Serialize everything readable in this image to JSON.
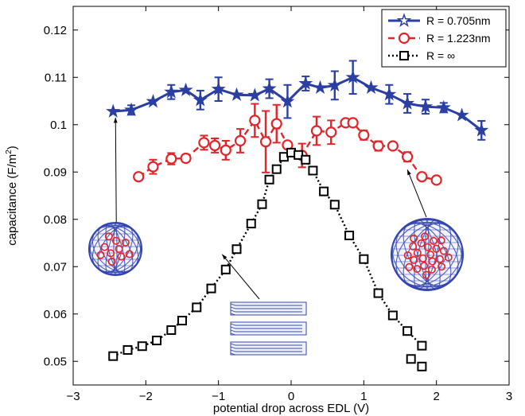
{
  "chart_data": {
    "type": "line",
    "xlabel": "potential drop across EDL (V)",
    "ylabel_main": "capacitance (F/m",
    "ylabel_sup": "2",
    "ylabel_close": ")",
    "xlim": [
      -3,
      3
    ],
    "ylim": [
      0.045,
      0.125
    ],
    "xticks": [
      -3,
      -2,
      -1,
      0,
      1,
      2,
      3
    ],
    "xtick_labels": [
      "−3",
      "−2",
      "−1",
      "0",
      "1",
      "2",
      "3"
    ],
    "yticks": [
      0.05,
      0.06,
      0.07,
      0.08,
      0.09,
      0.1,
      0.11,
      0.12
    ],
    "ytick_labels": [
      "0.05",
      "0.06",
      "0.07",
      "0.08",
      "0.09",
      "0.1",
      "0.11",
      "0.12"
    ],
    "legend_position": "top-right",
    "grid": false,
    "series": [
      {
        "name": "R = 0.705nm",
        "color": "#2b3fa3",
        "marker": "star",
        "line": "solid",
        "x": [
          -2.45,
          -2.2,
          -1.9,
          -1.65,
          -1.45,
          -1.25,
          -1.0,
          -0.75,
          -0.5,
          -0.3,
          -0.05,
          0.2,
          0.4,
          0.6,
          0.85,
          1.1,
          1.35,
          1.6,
          1.85,
          2.1,
          2.35,
          2.62
        ],
        "y": [
          0.1028,
          0.1031,
          0.1049,
          0.1069,
          0.1073,
          0.1052,
          0.1075,
          0.1063,
          0.1062,
          0.1076,
          0.1049,
          0.1087,
          0.1078,
          0.1083,
          0.11,
          0.1078,
          0.1064,
          0.1045,
          0.1038,
          0.1036,
          0.102,
          0.0988
        ],
        "err": [
          0.0,
          0.001,
          0.0,
          0.0015,
          0.0,
          0.002,
          0.0025,
          0.0,
          0.0,
          0.002,
          0.0035,
          0.0015,
          0.0,
          0.003,
          0.0035,
          0.0,
          0.002,
          0.002,
          0.0015,
          0.001,
          0.0,
          0.002
        ]
      },
      {
        "name": "R = 1.223nm",
        "color": "#e0262b",
        "marker": "circle",
        "line": "dashed",
        "x": [
          -2.1,
          -1.9,
          -1.65,
          -1.45,
          -1.2,
          -1.05,
          -0.9,
          -0.7,
          -0.5,
          -0.35,
          -0.2,
          -0.05,
          0.15,
          0.35,
          0.55,
          0.75,
          0.85,
          1.0,
          1.2,
          1.4,
          1.6,
          1.8,
          2.0
        ],
        "y": [
          0.089,
          0.0911,
          0.0928,
          0.0929,
          0.0962,
          0.0956,
          0.0946,
          0.0966,
          0.1009,
          0.0964,
          0.1002,
          0.0957,
          0.0935,
          0.0987,
          0.0984,
          0.1004,
          0.1004,
          0.0978,
          0.0955,
          0.0955,
          0.0932,
          0.089,
          0.0883
        ],
        "err": [
          0.0,
          0.0015,
          0.0012,
          0.0,
          0.0015,
          0.0015,
          0.002,
          0.0025,
          0.0035,
          0.0065,
          0.004,
          0.0,
          0.0025,
          0.003,
          0.0025,
          0.0,
          0.0,
          0.001,
          0.001,
          0.0,
          0.001,
          0.0,
          0.0
        ]
      },
      {
        "name": "R = ∞",
        "color": "#000000",
        "marker": "square",
        "line": "dotted",
        "x": [
          -2.45,
          -2.25,
          -2.05,
          -1.85,
          -1.65,
          -1.5,
          -1.3,
          -1.1,
          -0.9,
          -0.75,
          -0.55,
          -0.4,
          -0.3,
          -0.2,
          -0.1,
          0.0,
          0.1,
          0.2,
          0.3,
          0.45,
          0.6,
          0.8,
          1.0,
          1.2,
          1.4,
          1.6,
          1.8
        ],
        "y": [
          0.0511,
          0.0524,
          0.0532,
          0.0544,
          0.0566,
          0.0586,
          0.0614,
          0.0654,
          0.0694,
          0.0737,
          0.0791,
          0.0832,
          0.0884,
          0.0906,
          0.0932,
          0.0941,
          0.0936,
          0.0926,
          0.0903,
          0.0859,
          0.0831,
          0.0766,
          0.0716,
          0.0644,
          0.0597,
          0.0564,
          0.0533
        ]
      }
    ],
    "extra_black_points": [
      [
        1.65,
        0.0505
      ],
      [
        1.8,
        0.0489
      ]
    ]
  },
  "insets": {
    "small_sphere_icon": "carbon-nanosphere-small",
    "large_sphere_icon": "carbon-nanosphere-large",
    "graphene_icon": "graphene-layers"
  }
}
